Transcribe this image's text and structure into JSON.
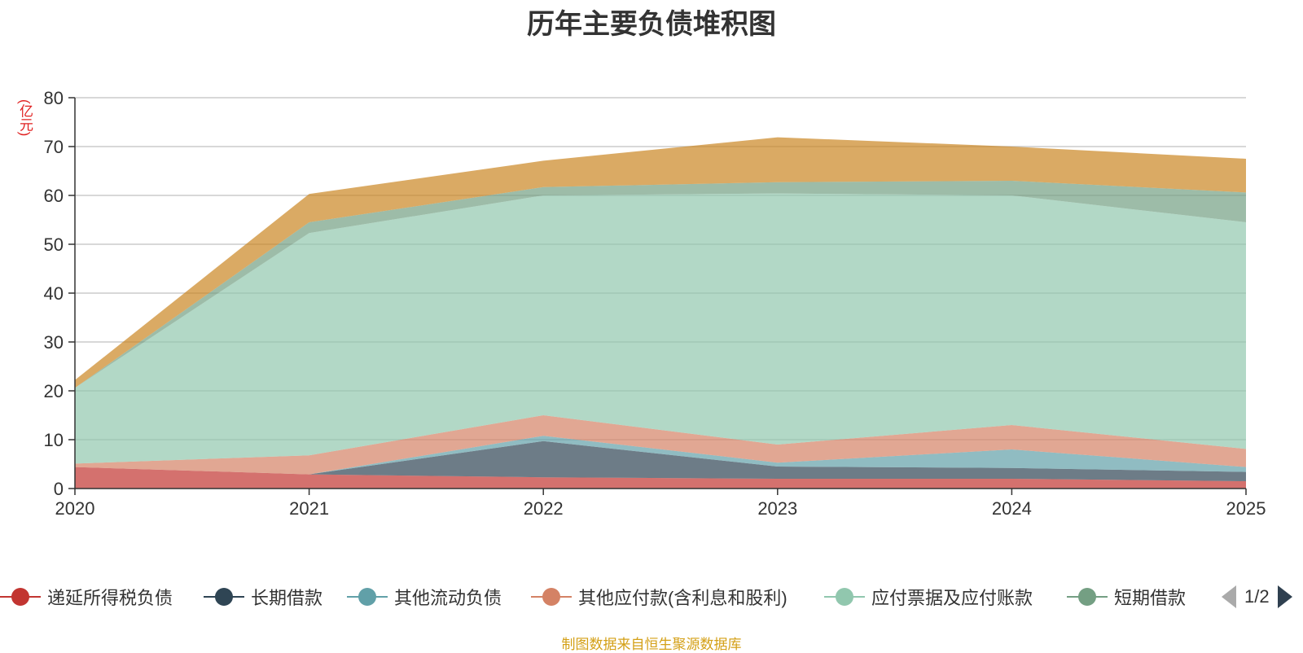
{
  "title": "历年主要负债堆积图",
  "unit_label": "(亿元)",
  "source": "制图数据来自恒生聚源数据库",
  "pager": {
    "text": "1/2"
  },
  "chart_data": {
    "type": "area",
    "stacked": true,
    "title": "历年主要负债堆积图",
    "ylabel": "(亿元)",
    "x": [
      "2020",
      "2021",
      "2022",
      "2023",
      "2024",
      "2025"
    ],
    "ylim": [
      0,
      80
    ],
    "yticks": [
      0,
      10,
      20,
      30,
      40,
      50,
      60,
      70,
      80
    ],
    "grid": true,
    "legend_position": "bottom",
    "series": [
      {
        "name": "递延所得税负债",
        "color": "#c23531",
        "values": [
          4.4,
          2.9,
          2.3,
          2.0,
          2.0,
          1.5
        ]
      },
      {
        "name": "长期借款",
        "color": "#2f4554",
        "values": [
          0.0,
          0.0,
          7.4,
          2.5,
          2.2,
          1.9
        ]
      },
      {
        "name": "其他流动负债",
        "color": "#61a0a8",
        "values": [
          0.0,
          0.0,
          1.1,
          0.8,
          3.8,
          1.0
        ]
      },
      {
        "name": "其他应付款(含利息和股利)",
        "color": "#d48265",
        "values": [
          0.7,
          3.9,
          4.2,
          3.7,
          5.0,
          3.7
        ]
      },
      {
        "name": "应付票据及应付账款",
        "color": "#91c7ae",
        "values": [
          15.5,
          45.5,
          45.0,
          51.4,
          47.0,
          46.4
        ]
      },
      {
        "name": "短期借款",
        "color": "#749f83",
        "values": [
          0.0,
          2.2,
          1.7,
          2.3,
          3.0,
          6.1
        ]
      },
      {
        "name": "",
        "color": "#ca8622",
        "values": [
          1.6,
          5.8,
          5.4,
          9.2,
          7.0,
          6.9
        ]
      }
    ]
  },
  "colors": {
    "axis": "#333333",
    "grid": "#cccccc",
    "text": "#333333",
    "unit": "#e02020",
    "source": "#d4a017"
  }
}
